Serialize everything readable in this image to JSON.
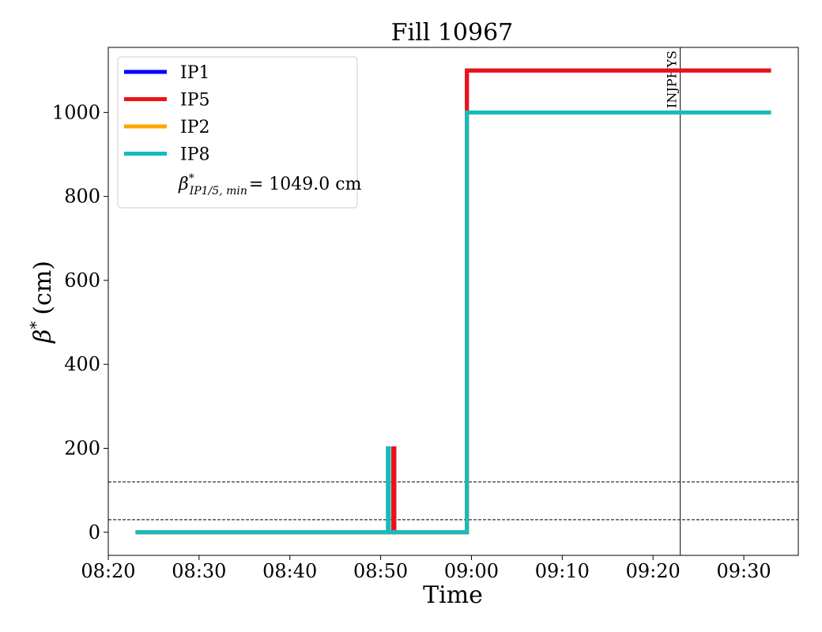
{
  "chart_data": {
    "type": "line",
    "title": "Fill 10967",
    "xlabel": "Time",
    "ylabel_symbol": "β",
    "ylabel_sup": "*",
    "ylabel_unit": "(cm)",
    "xlim": [
      "08:20",
      "09:36"
    ],
    "ylim": [
      -55,
      1155
    ],
    "x_ticks": [
      "08:20",
      "08:30",
      "08:40",
      "08:50",
      "09:00",
      "09:10",
      "09:20",
      "09:30"
    ],
    "y_ticks": [
      0,
      200,
      400,
      600,
      800,
      1000
    ],
    "grid": false,
    "legend_position": "top-left",
    "legend_note": {
      "symbol": "β",
      "sup": "*",
      "sub": "IP1/5, min",
      "value_text": "= 1049.0 cm"
    },
    "series": [
      {
        "name": "IP1",
        "color": "#0000ff",
        "points": [
          [
            "08:23",
            0
          ],
          [
            "08:51.4",
            0
          ],
          [
            "08:51.4",
            200
          ],
          [
            "08:51.5",
            200
          ],
          [
            "08:51.5",
            0
          ],
          [
            "08:59.5",
            0
          ],
          [
            "08:59.5",
            1100
          ],
          [
            "09:33",
            1100
          ]
        ]
      },
      {
        "name": "IP5",
        "color": "#ee1111",
        "points": [
          [
            "08:23",
            0
          ],
          [
            "08:51.4",
            0
          ],
          [
            "08:51.4",
            200
          ],
          [
            "08:51.5",
            200
          ],
          [
            "08:51.5",
            0
          ],
          [
            "08:59.5",
            0
          ],
          [
            "08:59.5",
            1100
          ],
          [
            "09:33",
            1100
          ]
        ]
      },
      {
        "name": "IP2",
        "color": "#ffa500",
        "points": [
          [
            "08:23",
            0
          ],
          [
            "08:50.8",
            0
          ],
          [
            "08:50.8",
            200
          ],
          [
            "08:50.9",
            200
          ],
          [
            "08:50.9",
            0
          ],
          [
            "08:59.5",
            0
          ],
          [
            "08:59.5",
            1000
          ],
          [
            "09:33",
            1000
          ]
        ]
      },
      {
        "name": "IP8",
        "color": "#17bbbb",
        "points": [
          [
            "08:23",
            0
          ],
          [
            "08:50.8",
            0
          ],
          [
            "08:50.8",
            200
          ],
          [
            "08:50.9",
            200
          ],
          [
            "08:50.9",
            0
          ],
          [
            "08:59.5",
            0
          ],
          [
            "08:59.5",
            1000
          ],
          [
            "09:33",
            1000
          ]
        ]
      }
    ],
    "hlines": [
      {
        "y": 30,
        "style": "dashed",
        "color": "#000000"
      },
      {
        "y": 120,
        "style": "dashed",
        "color": "#000000"
      }
    ],
    "vlines": [
      {
        "x": "09:23",
        "label": "INJPHYS",
        "color": "#000000"
      }
    ]
  }
}
